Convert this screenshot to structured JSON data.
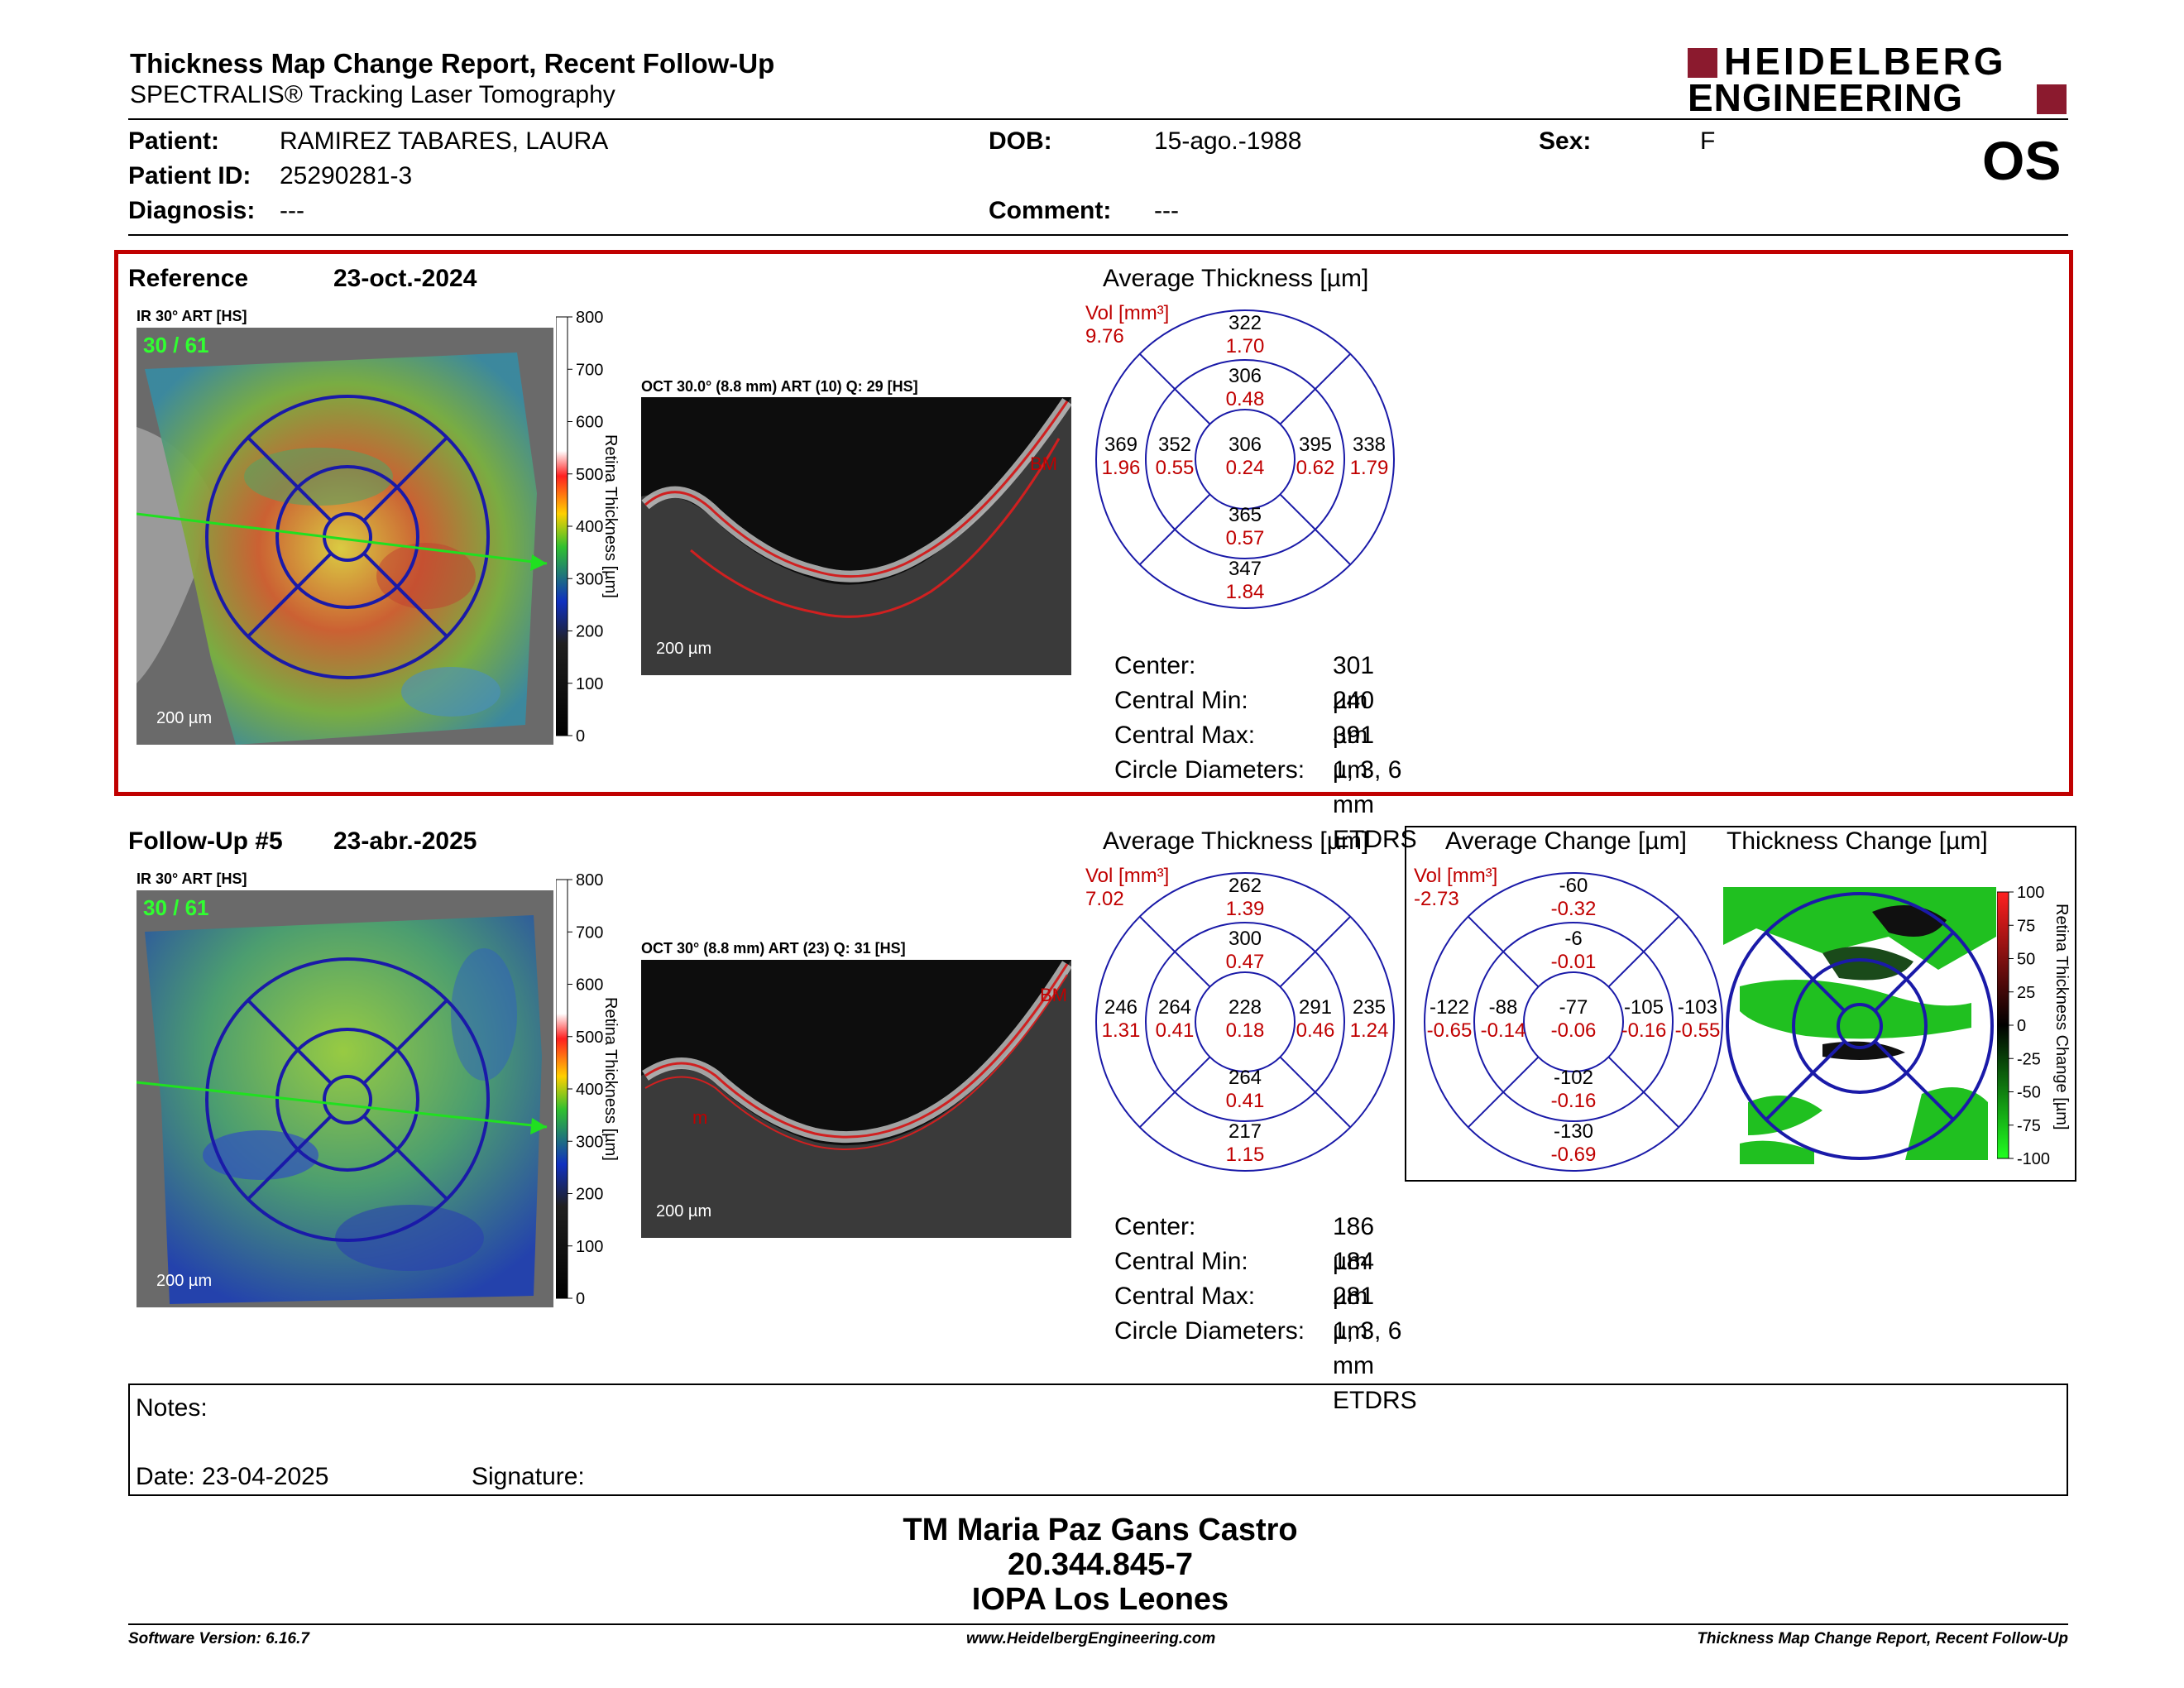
{
  "header": {
    "title": "Thickness Map Change Report, Recent Follow-Up",
    "subtitle": "SPECTRALIS® Tracking Laser Tomography",
    "logo_line1": "HEIDELBERG",
    "logo_line2": "ENGINEERING",
    "eye": "OS"
  },
  "patient": {
    "name_label": "Patient:",
    "name": "RAMIREZ TABARES, LAURA",
    "id_label": "Patient ID:",
    "id": "25290281-3",
    "diagnosis_label": "Diagnosis:",
    "diagnosis": "---",
    "dob_label": "DOB:",
    "dob": "15-ago.-1988",
    "comment_label": "Comment:",
    "comment": "---",
    "sex_label": "Sex:",
    "sex": "F"
  },
  "reference": {
    "label": "Reference",
    "date": "23-oct.-2024",
    "ir_label": "IR 30° ART [HS]",
    "frames": "30 / 61",
    "ir_scale": "200 µm",
    "oct_label": "OCT 30.0° (8.8 mm) ART (10) Q: 29 [HS]",
    "oct_scale": "200 µm",
    "scale_title": "Retina Thickness [µm]",
    "scale_ticks": [
      "800",
      "700",
      "600",
      "500",
      "400",
      "300",
      "200",
      "100",
      "0"
    ],
    "avg_title": "Average Thickness [µm]",
    "vol_label": "Vol [mm³]",
    "vol_total": "9.76",
    "sectors": {
      "sup_outer": [
        "322",
        "1.70"
      ],
      "sup_inner": [
        "306",
        "0.48"
      ],
      "temp_outer": [
        "369",
        "1.96"
      ],
      "temp_inner": [
        "352",
        "0.55"
      ],
      "center": [
        "306",
        "0.24"
      ],
      "nas_inner": [
        "395",
        "0.62"
      ],
      "nas_outer": [
        "338",
        "1.79"
      ],
      "inf_inner": [
        "365",
        "0.57"
      ],
      "inf_outer": [
        "347",
        "1.84"
      ]
    },
    "stats": [
      {
        "label": "Center:",
        "value": "301 µm"
      },
      {
        "label": "Central Min:",
        "value": "240 µm"
      },
      {
        "label": "Central Max:",
        "value": "391 µm"
      },
      {
        "label": "Circle Diameters:",
        "value": "1, 3, 6 mm ETDRS"
      }
    ]
  },
  "followup": {
    "label": "Follow-Up #5",
    "date": "23-abr.-2025",
    "ir_label": "IR 30° ART [HS]",
    "frames": "30 / 61",
    "ir_scale": "200 µm",
    "oct_label": "OCT 30° (8.8 mm) ART (23) Q: 31 [HS]",
    "oct_scale": "200 µm",
    "scale_title": "Retina Thickness [µm]",
    "scale_ticks": [
      "800",
      "700",
      "600",
      "500",
      "400",
      "300",
      "200",
      "100",
      "0"
    ],
    "avg_title": "Average Thickness [µm]",
    "vol_label": "Vol [mm³]",
    "vol_total": "7.02",
    "sectors": {
      "sup_outer": [
        "262",
        "1.39"
      ],
      "sup_inner": [
        "300",
        "0.47"
      ],
      "temp_outer": [
        "246",
        "1.31"
      ],
      "temp_inner": [
        "264",
        "0.41"
      ],
      "center": [
        "228",
        "0.18"
      ],
      "nas_inner": [
        "291",
        "0.46"
      ],
      "nas_outer": [
        "235",
        "1.24"
      ],
      "inf_inner": [
        "264",
        "0.41"
      ],
      "inf_outer": [
        "217",
        "1.15"
      ]
    },
    "stats": [
      {
        "label": "Center:",
        "value": "186 µm"
      },
      {
        "label": "Central Min:",
        "value": "184 µm"
      },
      {
        "label": "Central Max:",
        "value": "281 µm"
      },
      {
        "label": "Circle Diameters:",
        "value": "1, 3, 6 mm ETDRS"
      }
    ]
  },
  "change": {
    "avg_title": "Average Change [µm]",
    "vol_label": "Vol [mm³]",
    "vol_total": "-2.73",
    "sectors": {
      "sup_outer": [
        "-60",
        "-0.32"
      ],
      "sup_inner": [
        "-6",
        "-0.01"
      ],
      "temp_outer": [
        "-122",
        "-0.65"
      ],
      "temp_inner": [
        "-88",
        "-0.14"
      ],
      "center": [
        "-77",
        "-0.06"
      ],
      "nas_inner": [
        "-105",
        "-0.16"
      ],
      "nas_outer": [
        "-103",
        "-0.55"
      ],
      "inf_inner": [
        "-102",
        "-0.16"
      ],
      "inf_outer": [
        "-130",
        "-0.69"
      ]
    },
    "map_title": "Thickness Change [µm]",
    "scale_title": "Retina Thickness Change [µm]",
    "scale_ticks": [
      "100",
      "75",
      "50",
      "25",
      "0",
      "-25",
      "-50",
      "-75",
      "-100"
    ]
  },
  "notes": {
    "label": "Notes:",
    "date": "Date: 23-04-2025",
    "signature": "Signature:"
  },
  "signer": {
    "name": "TM Maria Paz Gans Castro",
    "rut": "20.344.845-7",
    "institution": "IOPA Los Leones"
  },
  "footer": {
    "version": "Software Version: 6.16.7",
    "website": "www.HeidelbergEngineering.com",
    "report": "Thickness Map Change Report, Recent Follow-Up"
  },
  "colors": {
    "accent_red": "#c00000",
    "brand": "#8b1a2e",
    "circle_blue": "#1a1aa8"
  }
}
